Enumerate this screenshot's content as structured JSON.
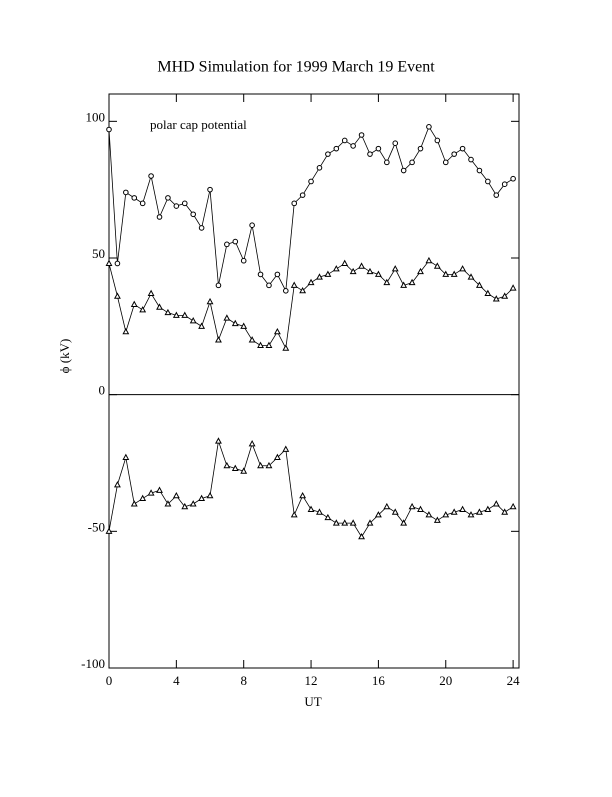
{
  "chart_data": {
    "type": "line",
    "title": "MHD Simulation for 1999 March 19 Event",
    "annotation": "polar cap potential",
    "x_label": "UT",
    "y_label": "ϕ  (kV)",
    "xlim": [
      0,
      24.35
    ],
    "xticks": [
      0,
      4,
      8,
      12,
      16,
      20,
      24
    ],
    "ylim": [
      -100,
      110
    ],
    "yticks": [
      -100,
      -50,
      0,
      50,
      100
    ],
    "zero_line": true,
    "x": [
      0,
      0.5,
      1,
      1.5,
      2,
      2.5,
      3,
      3.5,
      4,
      4.5,
      5,
      5.5,
      6,
      6.5,
      7,
      7.5,
      8,
      8.5,
      9,
      9.5,
      10,
      10.5,
      11,
      11.5,
      12,
      12.5,
      13,
      13.5,
      14,
      14.5,
      15,
      15.5,
      16,
      16.5,
      17,
      17.5,
      18,
      18.5,
      19,
      19.5,
      20,
      20.5,
      21,
      21.5,
      22,
      22.5,
      23,
      23.5,
      24
    ],
    "series": [
      {
        "color": "#000000",
        "marker": "circle",
        "values": [
          97,
          48,
          74,
          72,
          70,
          80,
          65,
          72,
          69,
          70,
          66,
          61,
          75,
          40,
          55,
          56,
          49,
          62,
          44,
          40,
          44,
          38,
          70,
          73,
          78,
          83,
          88,
          90,
          93,
          91,
          95,
          88,
          90,
          85,
          92,
          82,
          85,
          90,
          98,
          93,
          85,
          88,
          90,
          86,
          82,
          78,
          73,
          77,
          79
        ]
      },
      {
        "color": "#000000",
        "marker": "triangle",
        "values": [
          48,
          36,
          23,
          33,
          31,
          37,
          32,
          30,
          29,
          29,
          27,
          25,
          34,
          20,
          28,
          26,
          25,
          20,
          18,
          18,
          23,
          17,
          40,
          38,
          41,
          43,
          44,
          46,
          48,
          45,
          47,
          45,
          44,
          41,
          46,
          40,
          41,
          45,
          49,
          47,
          44,
          44,
          46,
          43,
          40,
          37,
          35,
          36,
          39
        ]
      },
      {
        "color": "#000000",
        "marker": "triangle",
        "values": [
          -50,
          -33,
          -23,
          -40,
          -38,
          -36,
          -35,
          -40,
          -37,
          -41,
          -40,
          -38,
          -37,
          -17,
          -26,
          -27,
          -28,
          -18,
          -26,
          -26,
          -23,
          -20,
          -44,
          -37,
          -42,
          -43,
          -45,
          -47,
          -47,
          -47,
          -52,
          -47,
          -44,
          -41,
          -43,
          -47,
          -41,
          -42,
          -44,
          -46,
          -44,
          -43,
          -42,
          -44,
          -43,
          -42,
          -40,
          -43,
          -41
        ]
      }
    ]
  }
}
